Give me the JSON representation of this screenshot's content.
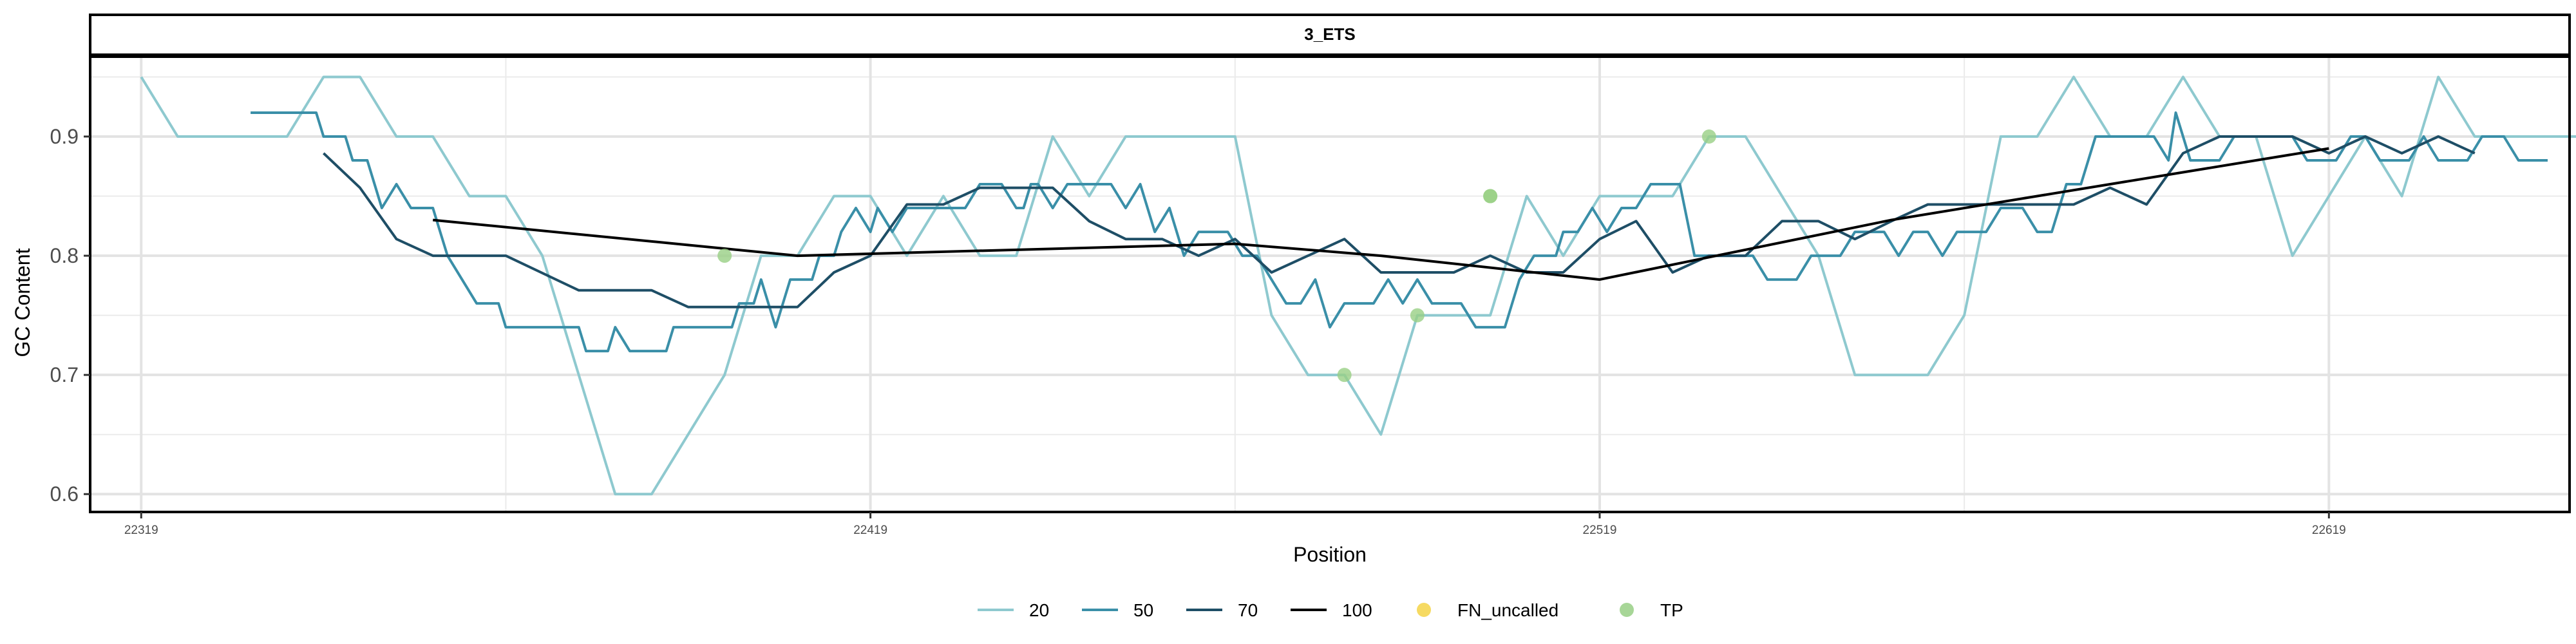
{
  "chart_data": {
    "type": "line",
    "panel_title": "3_ETS",
    "xlabel": "Position",
    "ylabel": "GC Content",
    "xlim": [
      22312,
      22652
    ],
    "ylim": [
      0.585,
      0.967
    ],
    "x_ticks": [
      22319,
      22419,
      22519,
      22619
    ],
    "y_ticks": [
      0.6,
      0.7,
      0.8,
      0.9
    ],
    "y_tick_labels": [
      "0.6",
      "0.7",
      "0.8",
      "0.9"
    ],
    "grid": true,
    "legend_position": "bottom",
    "series": [
      {
        "name": "20",
        "color": "#8ec9cf",
        "points": [
          [
            22319,
            0.95
          ],
          [
            22324,
            0.9
          ],
          [
            22334,
            0.9
          ],
          [
            22339,
            0.9
          ],
          [
            22344,
            0.95
          ],
          [
            22349,
            0.95
          ],
          [
            22354,
            0.9
          ],
          [
            22359,
            0.9
          ],
          [
            22364,
            0.85
          ],
          [
            22369,
            0.85
          ],
          [
            22374,
            0.8
          ],
          [
            22379,
            0.7
          ],
          [
            22384,
            0.6
          ],
          [
            22389,
            0.6
          ],
          [
            22399,
            0.7
          ],
          [
            22404,
            0.8
          ],
          [
            22409,
            0.8
          ],
          [
            22414,
            0.85
          ],
          [
            22419,
            0.85
          ],
          [
            22424,
            0.8
          ],
          [
            22429,
            0.85
          ],
          [
            22434,
            0.8
          ],
          [
            22439,
            0.8
          ],
          [
            22444,
            0.9
          ],
          [
            22449,
            0.85
          ],
          [
            22454,
            0.9
          ],
          [
            22459,
            0.9
          ],
          [
            22469,
            0.9
          ],
          [
            22474,
            0.75
          ],
          [
            22479,
            0.7
          ],
          [
            22484,
            0.7
          ],
          [
            22489,
            0.65
          ],
          [
            22494,
            0.75
          ],
          [
            22499,
            0.75
          ],
          [
            22504,
            0.75
          ],
          [
            22509,
            0.85
          ],
          [
            22514,
            0.8
          ],
          [
            22519,
            0.85
          ],
          [
            22529,
            0.85
          ],
          [
            22534,
            0.9
          ],
          [
            22539,
            0.9
          ],
          [
            22549,
            0.8
          ],
          [
            22554,
            0.7
          ],
          [
            22564,
            0.7
          ],
          [
            22569,
            0.75
          ],
          [
            22574,
            0.9
          ],
          [
            22579,
            0.9
          ],
          [
            22584,
            0.95
          ],
          [
            22589,
            0.9
          ],
          [
            22594,
            0.9
          ],
          [
            22599,
            0.95
          ],
          [
            22604,
            0.9
          ],
          [
            22609,
            0.9
          ],
          [
            22614,
            0.8
          ],
          [
            22619,
            0.85
          ],
          [
            22624,
            0.9
          ],
          [
            22629,
            0.85
          ],
          [
            22634,
            0.95
          ],
          [
            22639,
            0.9
          ],
          [
            22659,
            0.9
          ]
        ]
      },
      {
        "name": "50",
        "color": "#3a8fa8",
        "points": [
          [
            22334,
            0.92
          ],
          [
            22343,
            0.92
          ],
          [
            22344,
            0.9
          ],
          [
            22347,
            0.9
          ],
          [
            22348,
            0.88
          ],
          [
            22350,
            0.88
          ],
          [
            22351,
            0.86
          ],
          [
            22352,
            0.84
          ],
          [
            22354,
            0.86
          ],
          [
            22356,
            0.84
          ],
          [
            22359,
            0.84
          ],
          [
            22360,
            0.82
          ],
          [
            22361,
            0.8
          ],
          [
            22363,
            0.78
          ],
          [
            22365,
            0.76
          ],
          [
            22368,
            0.76
          ],
          [
            22369,
            0.74
          ],
          [
            22379,
            0.74
          ],
          [
            22380,
            0.72
          ],
          [
            22383,
            0.72
          ],
          [
            22384,
            0.74
          ],
          [
            22386,
            0.72
          ],
          [
            22391,
            0.72
          ],
          [
            22392,
            0.74
          ],
          [
            22400,
            0.74
          ],
          [
            22401,
            0.76
          ],
          [
            22403,
            0.76
          ],
          [
            22404,
            0.78
          ],
          [
            22406,
            0.74
          ],
          [
            22408,
            0.78
          ],
          [
            22411,
            0.78
          ],
          [
            22412,
            0.8
          ],
          [
            22414,
            0.8
          ],
          [
            22415,
            0.82
          ],
          [
            22417,
            0.84
          ],
          [
            22419,
            0.82
          ],
          [
            22420,
            0.84
          ],
          [
            22422,
            0.82
          ],
          [
            22424,
            0.84
          ],
          [
            22426,
            0.84
          ],
          [
            22428,
            0.84
          ],
          [
            22430,
            0.84
          ],
          [
            22432,
            0.84
          ],
          [
            22434,
            0.86
          ],
          [
            22437,
            0.86
          ],
          [
            22439,
            0.84
          ],
          [
            22440,
            0.84
          ],
          [
            22441,
            0.86
          ],
          [
            22442,
            0.86
          ],
          [
            22444,
            0.84
          ],
          [
            22446,
            0.86
          ],
          [
            22447,
            0.86
          ],
          [
            22449,
            0.86
          ],
          [
            22452,
            0.86
          ],
          [
            22454,
            0.84
          ],
          [
            22456,
            0.86
          ],
          [
            22458,
            0.82
          ],
          [
            22460,
            0.84
          ],
          [
            22462,
            0.8
          ],
          [
            22464,
            0.82
          ],
          [
            22468,
            0.82
          ],
          [
            22470,
            0.8
          ],
          [
            22472,
            0.8
          ],
          [
            22474,
            0.78
          ],
          [
            22476,
            0.76
          ],
          [
            22478,
            0.76
          ],
          [
            22480,
            0.78
          ],
          [
            22481,
            0.76
          ],
          [
            22482,
            0.74
          ],
          [
            22484,
            0.76
          ],
          [
            22488,
            0.76
          ],
          [
            22490,
            0.78
          ],
          [
            22492,
            0.76
          ],
          [
            22494,
            0.78
          ],
          [
            22496,
            0.76
          ],
          [
            22498,
            0.76
          ],
          [
            22500,
            0.76
          ],
          [
            22502,
            0.74
          ],
          [
            22506,
            0.74
          ],
          [
            22508,
            0.78
          ],
          [
            22510,
            0.8
          ],
          [
            22513,
            0.8
          ],
          [
            22514,
            0.82
          ],
          [
            22516,
            0.82
          ],
          [
            22518,
            0.84
          ],
          [
            22520,
            0.82
          ],
          [
            22522,
            0.84
          ],
          [
            22524,
            0.84
          ],
          [
            22526,
            0.86
          ],
          [
            22530,
            0.86
          ],
          [
            22532,
            0.8
          ],
          [
            22534,
            0.8
          ],
          [
            22536,
            0.8
          ],
          [
            22538,
            0.8
          ],
          [
            22540,
            0.8
          ],
          [
            22542,
            0.78
          ],
          [
            22546,
            0.78
          ],
          [
            22548,
            0.8
          ],
          [
            22552,
            0.8
          ],
          [
            22554,
            0.82
          ],
          [
            22558,
            0.82
          ],
          [
            22560,
            0.8
          ],
          [
            22562,
            0.82
          ],
          [
            22564,
            0.82
          ],
          [
            22566,
            0.8
          ],
          [
            22568,
            0.82
          ],
          [
            22572,
            0.82
          ],
          [
            22574,
            0.84
          ],
          [
            22577,
            0.84
          ],
          [
            22579,
            0.82
          ],
          [
            22581,
            0.82
          ],
          [
            22583,
            0.86
          ],
          [
            22585,
            0.86
          ],
          [
            22587,
            0.9
          ],
          [
            22595,
            0.9
          ],
          [
            22597,
            0.88
          ],
          [
            22598,
            0.92
          ],
          [
            22600,
            0.88
          ],
          [
            22604,
            0.88
          ],
          [
            22606,
            0.9
          ],
          [
            22614,
            0.9
          ],
          [
            22616,
            0.88
          ],
          [
            22620,
            0.88
          ],
          [
            22622,
            0.9
          ],
          [
            22624,
            0.9
          ],
          [
            22626,
            0.88
          ],
          [
            22630,
            0.88
          ],
          [
            22632,
            0.9
          ],
          [
            22634,
            0.88
          ],
          [
            22636,
            0.88
          ],
          [
            22638,
            0.88
          ],
          [
            22640,
            0.9
          ],
          [
            22643,
            0.9
          ],
          [
            22645,
            0.88
          ],
          [
            22649,
            0.88
          ]
        ]
      },
      {
        "name": "70",
        "color": "#1e4e66",
        "points": [
          [
            22344,
            0.886
          ],
          [
            22349,
            0.857
          ],
          [
            22354,
            0.814
          ],
          [
            22359,
            0.8
          ],
          [
            22369,
            0.8
          ],
          [
            22379,
            0.771
          ],
          [
            22389,
            0.771
          ],
          [
            22394,
            0.757
          ],
          [
            22409,
            0.757
          ],
          [
            22414,
            0.786
          ],
          [
            22419,
            0.8
          ],
          [
            22424,
            0.843
          ],
          [
            22429,
            0.843
          ],
          [
            22434,
            0.857
          ],
          [
            22439,
            0.857
          ],
          [
            22444,
            0.857
          ],
          [
            22449,
            0.829
          ],
          [
            22454,
            0.814
          ],
          [
            22459,
            0.814
          ],
          [
            22464,
            0.8
          ],
          [
            22469,
            0.814
          ],
          [
            22474,
            0.786
          ],
          [
            22479,
            0.8
          ],
          [
            22484,
            0.814
          ],
          [
            22489,
            0.786
          ],
          [
            22494,
            0.786
          ],
          [
            22499,
            0.786
          ],
          [
            22504,
            0.8
          ],
          [
            22509,
            0.786
          ],
          [
            22514,
            0.786
          ],
          [
            22519,
            0.814
          ],
          [
            22524,
            0.829
          ],
          [
            22529,
            0.786
          ],
          [
            22534,
            0.8
          ],
          [
            22539,
            0.8
          ],
          [
            22544,
            0.829
          ],
          [
            22549,
            0.829
          ],
          [
            22554,
            0.814
          ],
          [
            22559,
            0.829
          ],
          [
            22564,
            0.843
          ],
          [
            22569,
            0.843
          ],
          [
            22574,
            0.843
          ],
          [
            22579,
            0.843
          ],
          [
            22584,
            0.843
          ],
          [
            22589,
            0.857
          ],
          [
            22594,
            0.843
          ],
          [
            22599,
            0.886
          ],
          [
            22604,
            0.9
          ],
          [
            22609,
            0.9
          ],
          [
            22614,
            0.9
          ],
          [
            22619,
            0.886
          ],
          [
            22624,
            0.9
          ],
          [
            22629,
            0.886
          ],
          [
            22634,
            0.9
          ],
          [
            22639,
            0.886
          ]
        ]
      },
      {
        "name": "100",
        "color": "#000000",
        "points": [
          [
            22359,
            0.83
          ],
          [
            22409,
            0.8
          ],
          [
            22469,
            0.81
          ],
          [
            22489,
            0.8
          ],
          [
            22519,
            0.78
          ],
          [
            22559,
            0.83
          ],
          [
            22579,
            0.85
          ],
          [
            22619,
            0.89
          ]
        ]
      }
    ],
    "point_series": [
      {
        "name": "FN_uncalled",
        "color": "#f5d446",
        "points": []
      },
      {
        "name": "TP",
        "color": "#98cf85",
        "points": [
          [
            22399,
            0.8
          ],
          [
            22484,
            0.7
          ],
          [
            22494,
            0.75
          ],
          [
            22504,
            0.85
          ],
          [
            22504,
            0.85
          ],
          [
            22534,
            0.9
          ]
        ]
      }
    ]
  }
}
